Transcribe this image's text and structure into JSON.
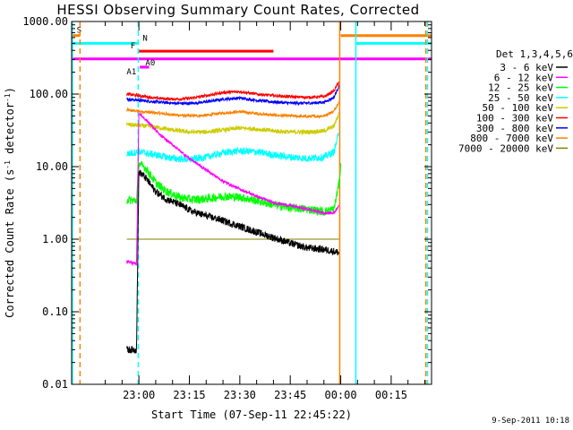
{
  "chart_data": {
    "type": "line",
    "title": "HESSI Observing Summary Count Rates, Corrected",
    "xlabel": "Start Time (07-Sep-11 22:45:22)",
    "ylabel": "Corrected Count Rate (s⁻¹ detector⁻¹)",
    "ylabel_parts": [
      "Corrected Count Rate (s",
      "-1",
      " detector",
      "-1",
      ")"
    ],
    "yscale": "log",
    "ylim": [
      0.01,
      1000
    ],
    "xlim_minutes": [
      -20,
      87
    ],
    "x_ticks": [
      {
        "label": "23:00",
        "t": 0
      },
      {
        "label": "23:15",
        "t": 15
      },
      {
        "label": "23:30",
        "t": 30
      },
      {
        "label": "23:45",
        "t": 45
      },
      {
        "label": "00:00",
        "t": 60
      },
      {
        "label": "00:15",
        "t": 75
      }
    ],
    "y_ticks": [
      {
        "label": "1000.00",
        "v": 1000
      },
      {
        "label": "100.00",
        "v": 100
      },
      {
        "label": "10.00",
        "v": 10
      },
      {
        "label": "1.00",
        "v": 1
      },
      {
        "label": "0.10",
        "v": 0.1
      },
      {
        "label": "0.01",
        "v": 0.01
      }
    ],
    "legend_title": "Det 1,3,4,5,6",
    "legend_location": "right",
    "series": [
      {
        "name": "3 - 6 keV",
        "color": "#000000",
        "noise": 0.05,
        "points": [
          [
            -3.6,
            0.03
          ],
          [
            -0.7,
            0.03
          ],
          [
            0,
            8.5
          ],
          [
            2,
            7
          ],
          [
            5,
            4.5
          ],
          [
            8,
            3.6
          ],
          [
            12,
            3.0
          ],
          [
            16,
            2.4
          ],
          [
            20,
            2.1
          ],
          [
            25,
            1.8
          ],
          [
            30,
            1.5
          ],
          [
            35,
            1.25
          ],
          [
            40,
            1.05
          ],
          [
            45,
            0.88
          ],
          [
            50,
            0.76
          ],
          [
            55,
            0.72
          ],
          [
            58,
            0.68
          ],
          [
            59.5,
            0.65
          ]
        ]
      },
      {
        "name": "6 - 12 keV",
        "color": "#ff00ff",
        "noise": 0.02,
        "points": [
          [
            -3.6,
            0.5
          ],
          [
            -0.7,
            0.45
          ],
          [
            0,
            55
          ],
          [
            3,
            40
          ],
          [
            6,
            28
          ],
          [
            10,
            20
          ],
          [
            15,
            13
          ],
          [
            20,
            9
          ],
          [
            25,
            6.3
          ],
          [
            30,
            4.9
          ],
          [
            35,
            3.9
          ],
          [
            40,
            3.2
          ],
          [
            45,
            2.9
          ],
          [
            50,
            2.6
          ],
          [
            55,
            2.3
          ],
          [
            58,
            2.3
          ],
          [
            59.5,
            3
          ]
        ]
      },
      {
        "name": "12 - 25 keV",
        "color": "#00ff00",
        "noise": 0.06,
        "points": [
          [
            -3.6,
            3.5
          ],
          [
            -0.7,
            3.4
          ],
          [
            0,
            11
          ],
          [
            2,
            9.5
          ],
          [
            5,
            6
          ],
          [
            8,
            4.6
          ],
          [
            12,
            3.8
          ],
          [
            16,
            3.5
          ],
          [
            20,
            3.6
          ],
          [
            25,
            3.9
          ],
          [
            30,
            3.8
          ],
          [
            35,
            3.4
          ],
          [
            40,
            3.0
          ],
          [
            45,
            2.7
          ],
          [
            50,
            2.6
          ],
          [
            55,
            2.4
          ],
          [
            58,
            2.6
          ],
          [
            59.5,
            6
          ],
          [
            60,
            10
          ]
        ]
      },
      {
        "name": "25 - 50 keV",
        "color": "#00ffff",
        "noise": 0.05,
        "points": [
          [
            -3.6,
            15
          ],
          [
            0,
            16
          ],
          [
            5,
            14.5
          ],
          [
            10,
            13
          ],
          [
            15,
            12.5
          ],
          [
            20,
            13.5
          ],
          [
            25,
            15.5
          ],
          [
            30,
            16.5
          ],
          [
            35,
            16
          ],
          [
            40,
            14.5
          ],
          [
            45,
            13.5
          ],
          [
            50,
            13
          ],
          [
            55,
            13.5
          ],
          [
            58,
            16
          ],
          [
            59.5,
            30
          ]
        ]
      },
      {
        "name": "50 - 100 keV",
        "color": "#cccc00",
        "noise": 0.03,
        "points": [
          [
            -3.6,
            38
          ],
          [
            0,
            37
          ],
          [
            5,
            35
          ],
          [
            10,
            32
          ],
          [
            15,
            30
          ],
          [
            20,
            30
          ],
          [
            25,
            32
          ],
          [
            30,
            34
          ],
          [
            35,
            33
          ],
          [
            40,
            31
          ],
          [
            45,
            30
          ],
          [
            50,
            30
          ],
          [
            55,
            31
          ],
          [
            58,
            36
          ],
          [
            59.5,
            55
          ]
        ]
      },
      {
        "name": "100 - 300 keV",
        "color": "#ff0000",
        "noise": 0.02,
        "points": [
          [
            -3.6,
            100
          ],
          [
            0,
            95
          ],
          [
            5,
            88
          ],
          [
            10,
            85
          ],
          [
            15,
            87
          ],
          [
            20,
            95
          ],
          [
            25,
            105
          ],
          [
            30,
            108
          ],
          [
            35,
            100
          ],
          [
            40,
            95
          ],
          [
            45,
            92
          ],
          [
            50,
            90
          ],
          [
            55,
            92
          ],
          [
            58,
            110
          ],
          [
            59.5,
            150
          ]
        ]
      },
      {
        "name": "300 - 800 keV",
        "color": "#0000ff",
        "noise": 0.02,
        "points": [
          [
            -3.6,
            85
          ],
          [
            0,
            82
          ],
          [
            5,
            78
          ],
          [
            10,
            75
          ],
          [
            15,
            74
          ],
          [
            20,
            78
          ],
          [
            25,
            85
          ],
          [
            30,
            88
          ],
          [
            35,
            82
          ],
          [
            40,
            78
          ],
          [
            45,
            75
          ],
          [
            50,
            75
          ],
          [
            55,
            77
          ],
          [
            58,
            90
          ],
          [
            59.5,
            130
          ]
        ]
      },
      {
        "name": "800 - 7000 keV",
        "color": "#ff8000",
        "noise": 0.02,
        "points": [
          [
            -3.6,
            60
          ],
          [
            0,
            58
          ],
          [
            5,
            55
          ],
          [
            10,
            52
          ],
          [
            15,
            50
          ],
          [
            20,
            51
          ],
          [
            25,
            55
          ],
          [
            30,
            57
          ],
          [
            35,
            54
          ],
          [
            40,
            51
          ],
          [
            45,
            50
          ],
          [
            50,
            49
          ],
          [
            55,
            50
          ],
          [
            58,
            58
          ],
          [
            59.5,
            80
          ]
        ]
      },
      {
        "name": "7000 - 20000 keV",
        "color": "#808000",
        "noise": 0,
        "points": [
          [
            -3.6,
            1.0
          ],
          [
            59.5,
            1.0
          ]
        ]
      }
    ],
    "flag_bars": [
      {
        "label": "S",
        "color": "#ff8000",
        "label_at": "start",
        "segments": [
          [
            -20,
            -17.5
          ],
          [
            60,
            87
          ]
        ],
        "level": 640
      },
      {
        "label": "N",
        "color": "#00ffff",
        "label_at": "start",
        "segments": [
          [
            -20,
            -0.2
          ],
          [
            64.5,
            87
          ]
        ],
        "level": 500
      },
      {
        "label": "F",
        "color": "#ff0000",
        "label_at": "before",
        "segments": [
          [
            0,
            40
          ]
        ],
        "level": 390
      },
      {
        "label": "",
        "color": "#ff00ff",
        "label_at": "none",
        "segments": [
          [
            -20,
            87
          ]
        ],
        "level": 305
      },
      {
        "label": "A1",
        "color": "#ff00ff",
        "label_at": "before",
        "segments": [
          [
            0.3,
            3
          ]
        ],
        "level": 235
      },
      {
        "label": "A0",
        "color": "#ff00ff",
        "label_at": "after",
        "segments": [
          [
            0.3,
            3
          ]
        ],
        "level": 235
      }
    ],
    "vertical_lines": [
      {
        "t": -19.8,
        "color": "#00ffff",
        "style": "solid"
      },
      {
        "t": -17.5,
        "color": "#ff8000",
        "style": "dashed"
      },
      {
        "t": -0.2,
        "color": "#00ffff",
        "style": "dashed"
      },
      {
        "t": 59.7,
        "color": "#ff8000",
        "style": "solid"
      },
      {
        "t": 64.5,
        "color": "#00ffff",
        "style": "solid"
      },
      {
        "t": 85.3,
        "color": "#ff8000",
        "style": "dashed"
      },
      {
        "t": 85.8,
        "color": "#00ffff",
        "style": "dashed"
      }
    ],
    "timestamp": "9-Sep-2011 10:18"
  }
}
